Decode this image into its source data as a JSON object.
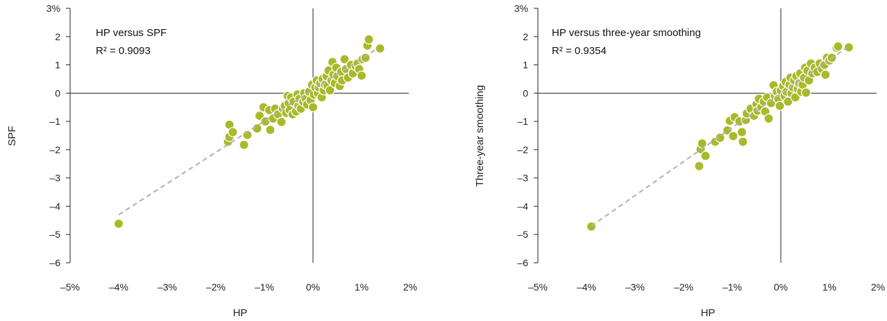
{
  "colors": {
    "marker": "#a9b92b",
    "marker_stroke": "#ffffff",
    "trend": "#b5b5b5",
    "axis": "#222222"
  },
  "chart_data": [
    {
      "type": "scatter",
      "title": "HP versus SPF",
      "annotation": "R² = 0.9093",
      "xlabel": "HP",
      "ylabel": "SPF",
      "xlim": [
        -5,
        2
      ],
      "ylim": [
        -6,
        3
      ],
      "xticks": [
        "–5%",
        "–4%",
        "–3%",
        "–2%",
        "–1%",
        "0%",
        "1%",
        "2%"
      ],
      "yticks": [
        "–6",
        "–5",
        "–4",
        "–3",
        "–2",
        "–1",
        "0",
        "1",
        "2",
        "3%"
      ],
      "grid": false,
      "trendline": {
        "x": [
          -4.0,
          1.3
        ],
        "y": [
          -4.3,
          1.55
        ]
      },
      "points": [
        [
          -4.0,
          -4.62
        ],
        [
          -1.72,
          -1.12
        ],
        [
          -1.75,
          -1.72
        ],
        [
          -1.72,
          -1.55
        ],
        [
          -1.65,
          -1.38
        ],
        [
          -1.42,
          -1.83
        ],
        [
          -1.35,
          -1.48
        ],
        [
          -1.15,
          -1.25
        ],
        [
          -1.1,
          -0.8
        ],
        [
          -1.02,
          -0.5
        ],
        [
          -0.98,
          -1.0
        ],
        [
          -0.9,
          -0.6
        ],
        [
          -0.88,
          -1.3
        ],
        [
          -0.82,
          -0.9
        ],
        [
          -0.78,
          -0.55
        ],
        [
          -0.72,
          -0.75
        ],
        [
          -0.65,
          -1.02
        ],
        [
          -0.62,
          -0.55
        ],
        [
          -0.58,
          -0.45
        ],
        [
          -0.55,
          -0.7
        ],
        [
          -0.52,
          -0.1
        ],
        [
          -0.5,
          -0.35
        ],
        [
          -0.48,
          -0.6
        ],
        [
          -0.45,
          -0.15
        ],
        [
          -0.42,
          -0.75
        ],
        [
          -0.4,
          -0.3
        ],
        [
          -0.35,
          -0.65
        ],
        [
          -0.32,
          -0.05
        ],
        [
          -0.3,
          -0.45
        ],
        [
          -0.28,
          -0.2
        ],
        [
          -0.25,
          -0.55
        ],
        [
          -0.2,
          -0.3
        ],
        [
          -0.18,
          0.0
        ],
        [
          -0.15,
          -0.2
        ],
        [
          -0.12,
          -0.4
        ],
        [
          -0.08,
          0.05
        ],
        [
          -0.05,
          -0.25
        ],
        [
          -0.02,
          0.3
        ],
        [
          0.0,
          -0.5
        ],
        [
          0.02,
          -0.05
        ],
        [
          0.05,
          0.2
        ],
        [
          0.08,
          0.45
        ],
        [
          0.1,
          0.0
        ],
        [
          0.12,
          0.2
        ],
        [
          0.15,
          0.35
        ],
        [
          0.18,
          -0.15
        ],
        [
          0.2,
          0.5
        ],
        [
          0.22,
          0.1
        ],
        [
          0.25,
          0.3
        ],
        [
          0.28,
          0.6
        ],
        [
          0.3,
          0.25
        ],
        [
          0.32,
          0.8
        ],
        [
          0.35,
          0.1
        ],
        [
          0.38,
          0.45
        ],
        [
          0.4,
          1.1
        ],
        [
          0.42,
          0.65
        ],
        [
          0.45,
          0.35
        ],
        [
          0.48,
          0.9
        ],
        [
          0.5,
          0.6
        ],
        [
          0.55,
          0.25
        ],
        [
          0.58,
          0.75
        ],
        [
          0.6,
          0.45
        ],
        [
          0.65,
          1.2
        ],
        [
          0.68,
          0.85
        ],
        [
          0.72,
          0.55
        ],
        [
          0.78,
          1.0
        ],
        [
          0.82,
          0.7
        ],
        [
          0.88,
          0.95
        ],
        [
          0.92,
          1.05
        ],
        [
          0.95,
          0.85
        ],
        [
          1.0,
          0.62
        ],
        [
          1.02,
          1.2
        ],
        [
          1.08,
          1.25
        ],
        [
          1.12,
          1.68
        ],
        [
          1.15,
          1.9
        ],
        [
          1.38,
          1.58
        ]
      ]
    },
    {
      "type": "scatter",
      "title": "HP versus three-year smoothing",
      "annotation": "R² = 0.9354",
      "xlabel": "HP",
      "ylabel": "Three-year smoothing",
      "xlim": [
        -5,
        2
      ],
      "ylim": [
        -6,
        3
      ],
      "xticks": [
        "–5%",
        "–4%",
        "–3%",
        "–2%",
        "–1%",
        "0%",
        "1%",
        "2%"
      ],
      "yticks": [
        "–6",
        "–5",
        "–4",
        "–3",
        "–2",
        "–1",
        "0",
        "1",
        "2",
        "3%"
      ],
      "grid": false,
      "trendline": {
        "x": [
          -3.9,
          1.35
        ],
        "y": [
          -4.7,
          1.6
        ]
      },
      "points": [
        [
          -3.9,
          -4.72
        ],
        [
          -1.68,
          -2.58
        ],
        [
          -1.65,
          -1.98
        ],
        [
          -1.62,
          -1.78
        ],
        [
          -1.55,
          -2.22
        ],
        [
          -1.35,
          -1.72
        ],
        [
          -1.25,
          -1.58
        ],
        [
          -1.1,
          -1.32
        ],
        [
          -1.05,
          -0.98
        ],
        [
          -0.98,
          -1.52
        ],
        [
          -0.95,
          -0.85
        ],
        [
          -0.85,
          -1.0
        ],
        [
          -0.8,
          -1.38
        ],
        [
          -0.78,
          -1.72
        ],
        [
          -0.72,
          -0.95
        ],
        [
          -0.7,
          -0.72
        ],
        [
          -0.62,
          -0.55
        ],
        [
          -0.55,
          -0.8
        ],
        [
          -0.5,
          -0.4
        ],
        [
          -0.48,
          -0.62
        ],
        [
          -0.45,
          -0.2
        ],
        [
          -0.4,
          -0.5
        ],
        [
          -0.35,
          -0.3
        ],
        [
          -0.32,
          -0.65
        ],
        [
          -0.28,
          -0.15
        ],
        [
          -0.25,
          -0.9
        ],
        [
          -0.2,
          -0.35
        ],
        [
          -0.15,
          0.28
        ],
        [
          -0.12,
          -0.1
        ],
        [
          -0.08,
          0.05
        ],
        [
          -0.05,
          -0.2
        ],
        [
          -0.02,
          -0.45
        ],
        [
          0.0,
          0.1
        ],
        [
          0.05,
          0.25
        ],
        [
          0.08,
          -0.1
        ],
        [
          0.1,
          0.4
        ],
        [
          0.12,
          0.05
        ],
        [
          0.15,
          -0.3
        ],
        [
          0.18,
          0.3
        ],
        [
          0.2,
          0.55
        ],
        [
          0.22,
          0.0
        ],
        [
          0.25,
          0.2
        ],
        [
          0.28,
          0.45
        ],
        [
          0.3,
          -0.15
        ],
        [
          0.32,
          0.6
        ],
        [
          0.35,
          0.15
        ],
        [
          0.38,
          0.35
        ],
        [
          0.4,
          0.7
        ],
        [
          0.42,
          0.05
        ],
        [
          0.45,
          0.3
        ],
        [
          0.48,
          0.55
        ],
        [
          0.5,
          0.9
        ],
        [
          0.52,
          0.02
        ],
        [
          0.55,
          0.8
        ],
        [
          0.58,
          0.45
        ],
        [
          0.62,
          1.05
        ],
        [
          0.65,
          0.7
        ],
        [
          0.7,
          0.9
        ],
        [
          0.75,
          0.75
        ],
        [
          0.8,
          1.05
        ],
        [
          0.85,
          0.85
        ],
        [
          0.9,
          1.0
        ],
        [
          0.92,
          0.65
        ],
        [
          0.95,
          1.25
        ],
        [
          1.0,
          1.15
        ],
        [
          1.05,
          1.25
        ],
        [
          1.15,
          1.6
        ],
        [
          1.18,
          1.65
        ],
        [
          1.4,
          1.62
        ]
      ]
    }
  ]
}
